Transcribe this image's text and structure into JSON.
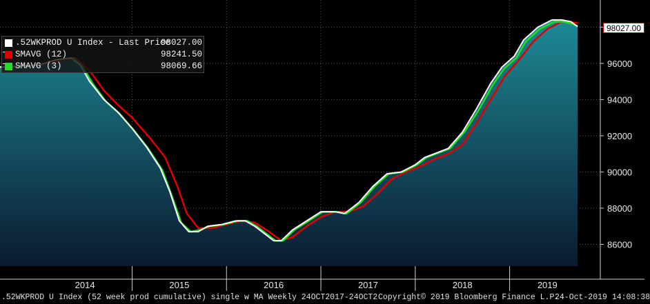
{
  "chart_data": {
    "type": "line",
    "title": ".52WKPROD U Index (52 week prod cumulative) single w MA  Weekly 24OCT2017-24OCT2",
    "x_labels": [
      "2014",
      "2015",
      "2016",
      "2017",
      "2018",
      "2019"
    ],
    "ylim": [
      84800,
      99500
    ],
    "yticks": [
      86000,
      88000,
      90000,
      92000,
      94000,
      96000,
      98000
    ],
    "ytick_labels": [
      "86000",
      "88000",
      "90000",
      "92000",
      "94000",
      "96000",
      "98000"
    ],
    "x_year_start": 2013.6,
    "x_year_end": 2019.8,
    "grid": true,
    "legend_placement": "top-left",
    "series": [
      {
        "name": ".52WKPROD U Index - Last Price",
        "last_value": "98027.00",
        "color": "#ffffff",
        "points": [
          [
            2013.6,
            95800
          ],
          [
            2014.0,
            95900
          ],
          [
            2014.2,
            96200
          ],
          [
            2014.35,
            96300
          ],
          [
            2014.45,
            95900
          ],
          [
            2014.55,
            95000
          ],
          [
            2014.7,
            94000
          ],
          [
            2014.85,
            93300
          ],
          [
            2015.0,
            92400
          ],
          [
            2015.15,
            91400
          ],
          [
            2015.3,
            90200
          ],
          [
            2015.4,
            88900
          ],
          [
            2015.5,
            87300
          ],
          [
            2015.6,
            86700
          ],
          [
            2015.7,
            86700
          ],
          [
            2015.8,
            87000
          ],
          [
            2015.95,
            87100
          ],
          [
            2016.1,
            87300
          ],
          [
            2016.2,
            87300
          ],
          [
            2016.3,
            87000
          ],
          [
            2016.4,
            86600
          ],
          [
            2016.5,
            86200
          ],
          [
            2016.58,
            86200
          ],
          [
            2016.7,
            86800
          ],
          [
            2016.85,
            87300
          ],
          [
            2017.0,
            87800
          ],
          [
            2017.15,
            87800
          ],
          [
            2017.25,
            87700
          ],
          [
            2017.4,
            88300
          ],
          [
            2017.55,
            89200
          ],
          [
            2017.7,
            89900
          ],
          [
            2017.85,
            90000
          ],
          [
            2018.0,
            90400
          ],
          [
            2018.1,
            90800
          ],
          [
            2018.2,
            91000
          ],
          [
            2018.35,
            91300
          ],
          [
            2018.5,
            92200
          ],
          [
            2018.65,
            93500
          ],
          [
            2018.8,
            94900
          ],
          [
            2018.92,
            95800
          ],
          [
            2019.05,
            96400
          ],
          [
            2019.15,
            97300
          ],
          [
            2019.3,
            98000
          ],
          [
            2019.45,
            98400
          ],
          [
            2019.55,
            98400
          ],
          [
            2019.65,
            98300
          ],
          [
            2019.72,
            98027
          ]
        ]
      },
      {
        "name": "SMAVG (12)",
        "last_value": "98241.50",
        "color": "#e00000",
        "points": [
          [
            2013.6,
            95800
          ],
          [
            2014.0,
            95900
          ],
          [
            2014.2,
            96100
          ],
          [
            2014.4,
            96300
          ],
          [
            2014.55,
            95600
          ],
          [
            2014.7,
            94500
          ],
          [
            2014.85,
            93700
          ],
          [
            2015.0,
            93000
          ],
          [
            2015.2,
            91800
          ],
          [
            2015.35,
            90800
          ],
          [
            2015.48,
            89200
          ],
          [
            2015.58,
            87700
          ],
          [
            2015.7,
            86900
          ],
          [
            2015.85,
            86900
          ],
          [
            2016.0,
            87100
          ],
          [
            2016.15,
            87300
          ],
          [
            2016.3,
            87200
          ],
          [
            2016.45,
            86700
          ],
          [
            2016.58,
            86200
          ],
          [
            2016.7,
            86400
          ],
          [
            2016.85,
            87000
          ],
          [
            2017.0,
            87500
          ],
          [
            2017.15,
            87800
          ],
          [
            2017.3,
            87800
          ],
          [
            2017.45,
            88100
          ],
          [
            2017.6,
            88800
          ],
          [
            2017.75,
            89600
          ],
          [
            2017.9,
            90000
          ],
          [
            2018.05,
            90300
          ],
          [
            2018.2,
            90700
          ],
          [
            2018.35,
            91000
          ],
          [
            2018.5,
            91500
          ],
          [
            2018.65,
            92700
          ],
          [
            2018.8,
            94000
          ],
          [
            2018.95,
            95300
          ],
          [
            2019.1,
            96200
          ],
          [
            2019.25,
            97200
          ],
          [
            2019.4,
            97900
          ],
          [
            2019.55,
            98300
          ],
          [
            2019.72,
            98241
          ]
        ]
      },
      {
        "name": "SMAVG (3)",
        "last_value": "98069.66",
        "color": "#22dd22",
        "points": [
          [
            2013.6,
            95800
          ],
          [
            2014.0,
            95900
          ],
          [
            2014.2,
            96200
          ],
          [
            2014.38,
            96300
          ],
          [
            2014.48,
            95800
          ],
          [
            2014.58,
            94900
          ],
          [
            2014.72,
            93900
          ],
          [
            2014.87,
            93200
          ],
          [
            2015.02,
            92300
          ],
          [
            2015.17,
            91300
          ],
          [
            2015.32,
            90100
          ],
          [
            2015.42,
            88700
          ],
          [
            2015.52,
            87200
          ],
          [
            2015.62,
            86700
          ],
          [
            2015.72,
            86800
          ],
          [
            2015.82,
            87000
          ],
          [
            2015.97,
            87100
          ],
          [
            2016.12,
            87300
          ],
          [
            2016.22,
            87300
          ],
          [
            2016.32,
            87000
          ],
          [
            2016.42,
            86600
          ],
          [
            2016.52,
            86200
          ],
          [
            2016.6,
            86200
          ],
          [
            2016.72,
            86800
          ],
          [
            2016.87,
            87300
          ],
          [
            2017.02,
            87800
          ],
          [
            2017.17,
            87800
          ],
          [
            2017.27,
            87700
          ],
          [
            2017.42,
            88300
          ],
          [
            2017.57,
            89200
          ],
          [
            2017.72,
            89900
          ],
          [
            2017.87,
            90000
          ],
          [
            2018.02,
            90400
          ],
          [
            2018.12,
            90800
          ],
          [
            2018.22,
            91000
          ],
          [
            2018.37,
            91300
          ],
          [
            2018.52,
            92200
          ],
          [
            2018.67,
            93400
          ],
          [
            2018.82,
            94800
          ],
          [
            2018.94,
            95700
          ],
          [
            2019.07,
            96300
          ],
          [
            2019.17,
            97200
          ],
          [
            2019.32,
            97900
          ],
          [
            2019.47,
            98300
          ],
          [
            2019.57,
            98300
          ],
          [
            2019.65,
            98200
          ],
          [
            2019.72,
            98070
          ]
        ]
      }
    ]
  },
  "last_price_tag": "98027.00",
  "footer": {
    "description": ".52WKPROD U Index (52 week prod cumulative) single w MA  Weekly 24OCT2017-24OCT2",
    "copyright": "Copyright© 2019 Bloomberg Finance L.P.",
    "timestamp": "24-Oct-2019 14:08:38"
  },
  "colors": {
    "background": "#000000",
    "area_top": "#1d8a95",
    "area_bottom": "#0b1a30",
    "grid": "#5a5a5a"
  }
}
